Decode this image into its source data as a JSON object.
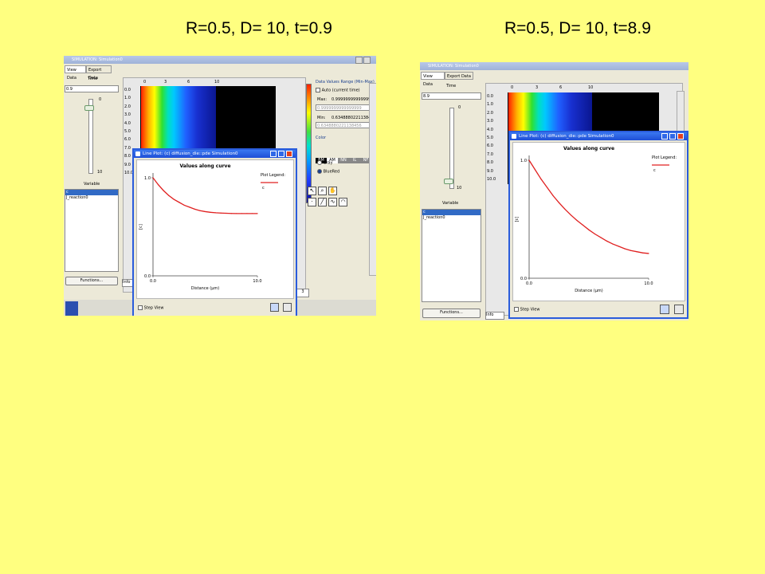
{
  "titles": {
    "left": "R=0.5, D= 10, t=0.9",
    "right": "R=0.5, D= 10, t=8.9"
  },
  "windows": [
    {
      "window_title": "SIMULATION: Simulation0",
      "tabs": [
        "View Data",
        "Export Data"
      ],
      "time_label": "Time",
      "time_value": "0.9",
      "slider_min": "0",
      "slider_max": "10",
      "slider_fraction": 0.09,
      "variable_label": "Variable",
      "variables": [
        "c",
        "J_reaction0"
      ],
      "selected_variable": "c",
      "functions_label": "Functions...",
      "info_label": "Info",
      "x_ticks": [
        "0",
        "3",
        "6",
        "10"
      ],
      "y_ticks": [
        "0.0",
        "1.0",
        "2.0",
        "3.0",
        "4.0",
        "5.0",
        "6.0",
        "7.0",
        "8.0",
        "9.0",
        "10.0"
      ],
      "heatmap_fill_fraction": 0.55,
      "data_range": {
        "title": "Data Values Range (Min-Max)",
        "auto_label": "Auto (current time)",
        "max_label": "Max:",
        "max_value": "0.9999999999999999",
        "max_field": "0.9999999999999999",
        "min_label": "Min:",
        "min_value": "0.6348880221138456",
        "min_field": "0.6348880221138456"
      },
      "color_section": {
        "label": "Color",
        "modes": [
          "BM",
          "AM",
          "NN",
          "IL",
          "NF"
        ],
        "options": [
          "Gray",
          "BlueRed"
        ],
        "selected": "BlueRed"
      },
      "status_value": "3",
      "line_plot": {
        "title": "Line Plot: (c) diffusion_die::pde Simulation0",
        "chart_title": "Values along curve",
        "legend_title": "Plot Legend:",
        "legend_entry": "c",
        "ylabel": "[c]",
        "xlabel": "Distance (µm)",
        "x_tick_labels": [
          "0.0",
          "10.0"
        ],
        "y_tick_labels": [
          "0.0",
          "1.0"
        ],
        "step_view_label": "Step View"
      }
    },
    {
      "window_title": "SIMULATION: Simulation0",
      "tabs": [
        "View Data",
        "Export Data"
      ],
      "time_label": "Time",
      "time_value": "8.9",
      "slider_min": "0",
      "slider_max": "10",
      "slider_fraction": 0.89,
      "variable_label": "Variable",
      "variables": [
        "c",
        "J_reaction0"
      ],
      "selected_variable": "c",
      "functions_label": "Functions...",
      "info_label": "Info",
      "x_ticks": [
        "0",
        "3",
        "6",
        "10"
      ],
      "y_ticks": [
        "0.0",
        "1.0",
        "2.0",
        "3.0",
        "4.0",
        "5.0",
        "6.0",
        "7.0",
        "8.0",
        "9.0",
        "10.0"
      ],
      "heatmap_fill_fraction": 0.55,
      "line_plot": {
        "title": "Line Plot: (c) diffusion_die::pde Simulation0",
        "chart_title": "Values along curve",
        "legend_title": "Plot Legend:",
        "legend_entry": "c",
        "ylabel": "[c]",
        "xlabel": "Distance (µm)",
        "x_tick_labels": [
          "0.0",
          "10.0"
        ],
        "y_tick_labels": [
          "0.0",
          "1.0"
        ],
        "step_view_label": "Step View"
      }
    }
  ],
  "chart_data": [
    {
      "type": "line",
      "title": "Values along curve",
      "xlabel": "Distance (µm)",
      "ylabel": "[c]",
      "xlim": [
        0,
        10
      ],
      "ylim": [
        0,
        1
      ],
      "series": [
        {
          "name": "c",
          "color": "#e02020",
          "x": [
            0,
            0.5,
            1,
            1.5,
            2,
            2.5,
            3,
            3.5,
            4,
            4.5,
            5,
            5.5,
            6,
            6.5,
            7,
            7.5,
            8,
            8.5,
            9,
            9.5,
            10
          ],
          "y": [
            1.0,
            0.93,
            0.87,
            0.82,
            0.78,
            0.75,
            0.72,
            0.7,
            0.68,
            0.665,
            0.655,
            0.648,
            0.643,
            0.64,
            0.638,
            0.636,
            0.635,
            0.635,
            0.635,
            0.635,
            0.635
          ]
        }
      ],
      "grid": false,
      "legend": "right"
    },
    {
      "type": "line",
      "title": "Values along curve",
      "xlabel": "Distance (µm)",
      "ylabel": "[c]",
      "xlim": [
        0,
        10
      ],
      "ylim": [
        0,
        1
      ],
      "series": [
        {
          "name": "c",
          "color": "#e02020",
          "x": [
            0,
            0.5,
            1,
            1.5,
            2,
            2.5,
            3,
            3.5,
            4,
            4.5,
            5,
            5.5,
            6,
            6.5,
            7,
            7.5,
            8,
            8.5,
            9,
            9.5,
            10
          ],
          "y": [
            1.0,
            0.92,
            0.84,
            0.77,
            0.7,
            0.64,
            0.585,
            0.535,
            0.49,
            0.45,
            0.41,
            0.375,
            0.345,
            0.315,
            0.29,
            0.27,
            0.25,
            0.235,
            0.225,
            0.215,
            0.21
          ]
        }
      ],
      "grid": false,
      "legend": "right"
    }
  ]
}
